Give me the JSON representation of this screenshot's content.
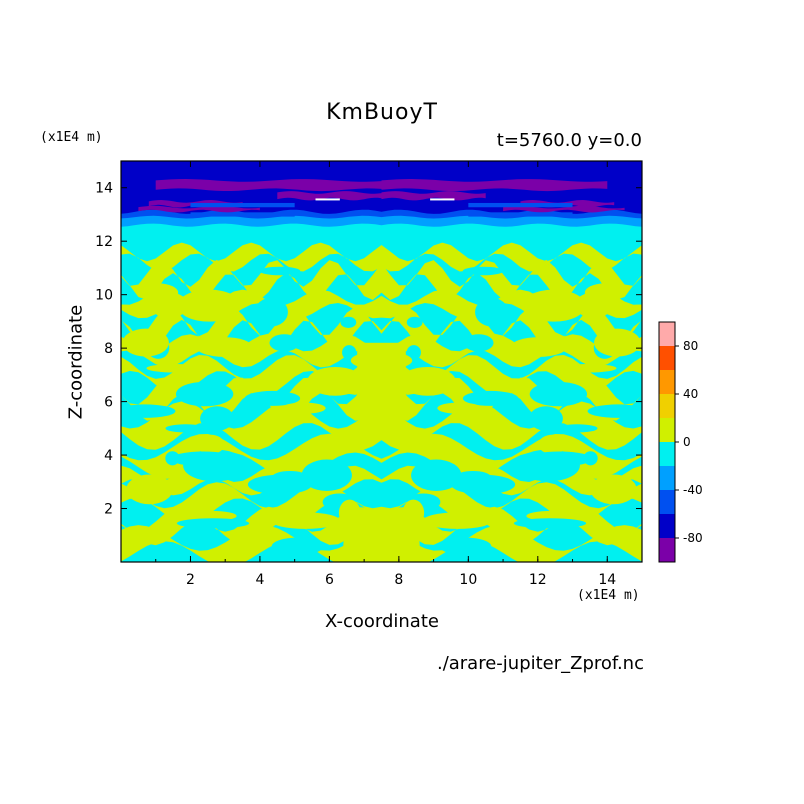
{
  "chart_data": {
    "type": "heatmap",
    "title": "KmBuoyT",
    "subtitle": "t=5760.0 y=0.0",
    "xlabel": "X-coordinate",
    "ylabel": "Z-coordinate",
    "x_unit": "(x1E4 m)",
    "z_unit": "(x1E4 m)",
    "source": "./arare-jupiter_Zprof.nc",
    "xlim": [
      0,
      15
    ],
    "ylim": [
      0,
      15
    ],
    "x_ticks": [
      2,
      4,
      6,
      8,
      10,
      12,
      14
    ],
    "y_ticks": [
      2,
      4,
      6,
      8,
      10,
      12,
      14
    ],
    "colorbar": {
      "range": [
        -100,
        100
      ],
      "tick_labels": [
        80,
        40,
        0,
        -40,
        -80
      ],
      "levels": [
        {
          "from": -100,
          "to": -80,
          "color": "#7b00a8"
        },
        {
          "from": -80,
          "to": -60,
          "color": "#0000c8"
        },
        {
          "from": -60,
          "to": -40,
          "color": "#0050f0"
        },
        {
          "from": -40,
          "to": -20,
          "color": "#00a0ff"
        },
        {
          "from": -20,
          "to": 0,
          "color": "#00f0f0"
        },
        {
          "from": 0,
          "to": 20,
          "color": "#d0f000"
        },
        {
          "from": 20,
          "to": 40,
          "color": "#f0d000"
        },
        {
          "from": 40,
          "to": 60,
          "color": "#ff9800"
        },
        {
          "from": 60,
          "to": 80,
          "color": "#ff5000"
        },
        {
          "from": 80,
          "to": 100,
          "color": "#ff0000"
        }
      ],
      "top_color": "#ffaaaa"
    },
    "field_layers": [
      {
        "z_from": 0,
        "z_to": 12.7,
        "value": -10
      },
      {
        "z_from": 12.7,
        "z_to": 13.0,
        "value": -30
      },
      {
        "z_from": 13.0,
        "z_to": 13.4,
        "value": -70
      },
      {
        "z_from": 13.4,
        "z_to": 14.2,
        "value": -70
      },
      {
        "z_from": 14.2,
        "z_to": 15.0,
        "value": -70
      }
    ]
  }
}
